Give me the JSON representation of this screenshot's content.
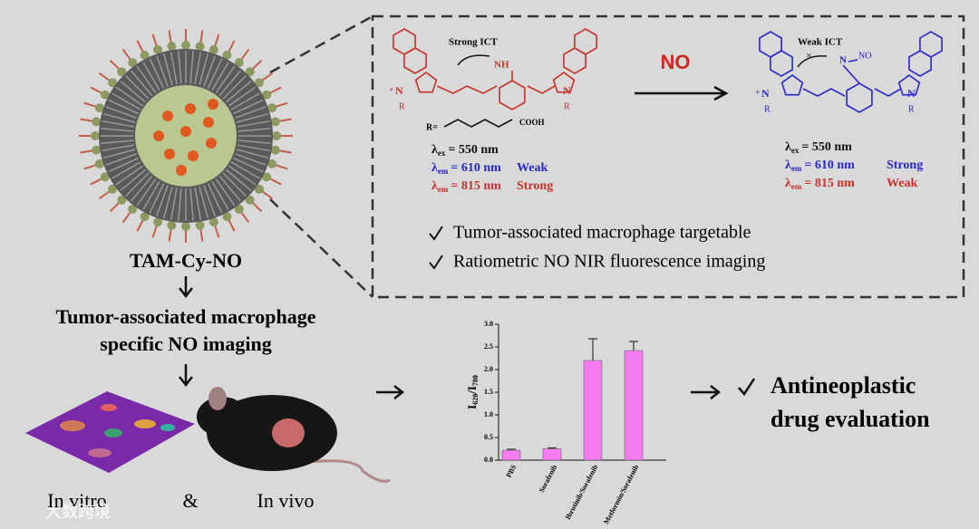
{
  "nanoparticle": {
    "label": "TAM-Cy-NO"
  },
  "imaging": {
    "lines": [
      "Tumor-associated macrophage",
      "specific NO imaging"
    ]
  },
  "models": {
    "in_vitro": "In vitro",
    "and": "&",
    "in_vivo": "In vivo"
  },
  "mechanism": {
    "probe": {
      "title": "Strong ICT",
      "amine": "NH",
      "n_atom": "N",
      "r_atom": "R",
      "charge": "+",
      "r_label": "R=",
      "acid": "COOH",
      "lambdas": [
        {
          "symbol": "λ",
          "sub": "ex",
          "rest": "= 550 nm"
        },
        {
          "symbol": "λ",
          "sub": "em",
          "rest": "= 610 nm",
          "note": "Weak"
        },
        {
          "symbol": "λ",
          "sub": "em",
          "rest": "= 815 nm",
          "note": "Strong"
        }
      ]
    },
    "reagent": "NO",
    "product": {
      "title": "Weak ICT",
      "n_atom": "N",
      "r_atom": "R",
      "charge": "+",
      "nitroso": "NO",
      "cross": "×",
      "lambdas": [
        {
          "symbol": "λ",
          "sub": "ex",
          "rest": "= 550 nm"
        },
        {
          "symbol": "λ",
          "sub": "em",
          "rest": "= 610 nm",
          "note": "Strong"
        },
        {
          "symbol": "λ",
          "sub": "em",
          "rest": "= 815 nm",
          "note": "Weak"
        }
      ]
    },
    "features": [
      "Tumor-associated macrophage targetable",
      "Ratiometric NO NIR fluorescence imaging"
    ]
  },
  "chart_data": {
    "type": "bar",
    "y_label": [
      "I",
      "620",
      "/I",
      "780"
    ],
    "categories": [
      "PBS",
      "Sorafenib",
      "Ibrutinib/Sorafenib",
      "Metformin/Sorafenib"
    ],
    "values": [
      0.22,
      0.25,
      2.2,
      2.42
    ],
    "errors": [
      0.02,
      0.02,
      0.48,
      0.2
    ],
    "color": "#f47cf0",
    "ylim": [
      0,
      3
    ],
    "yticks": [
      {
        "value": 0,
        "label": "0.0"
      },
      0.5,
      {
        "value": 1,
        "label": "1.0"
      },
      1.5,
      {
        "value": 2,
        "label": "2.0"
      },
      2.5,
      {
        "value": 3,
        "label": "3.0"
      }
    ]
  },
  "outcome": {
    "lines": [
      "Antineoplastic",
      "drug evaluation"
    ]
  },
  "watermark": "大数跨境"
}
